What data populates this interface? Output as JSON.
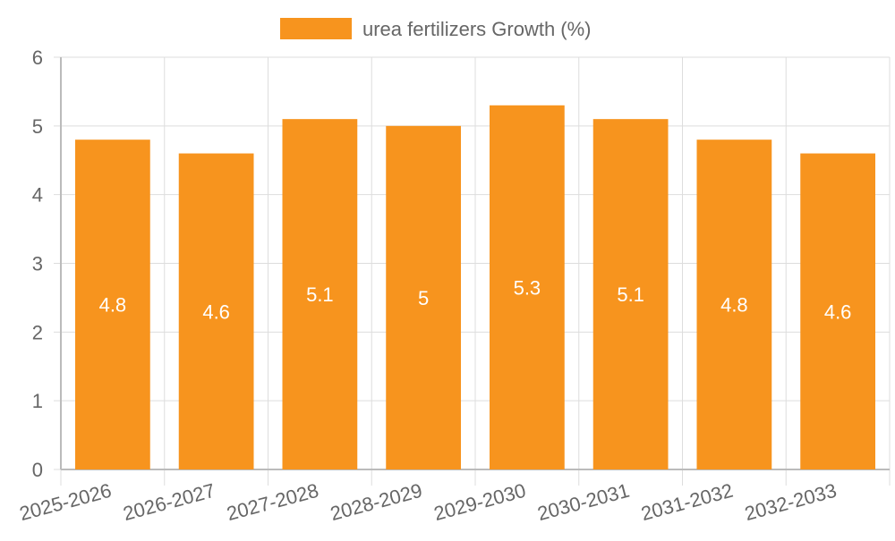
{
  "chart_data": {
    "type": "bar",
    "title": "",
    "xlabel": "",
    "ylabel": "",
    "categories": [
      "2025-2026",
      "2026-2027",
      "2027-2028",
      "2028-2029",
      "2029-2030",
      "2030-2031",
      "2031-2032",
      "2032-2033"
    ],
    "series": [
      {
        "name": "urea fertilizers Growth (%)",
        "values": [
          4.8,
          4.6,
          5.1,
          5,
          5.3,
          5.1,
          4.8,
          4.6
        ],
        "color": "#F7941E"
      }
    ],
    "ylim": [
      0,
      6
    ],
    "yticks": [
      0,
      1,
      2,
      3,
      4,
      5,
      6
    ],
    "grid": true,
    "legend_position": "top-center",
    "colors": {
      "bar": "#F7941E",
      "grid": "#DDDDDD",
      "axis": "#BBBBBB",
      "tick_text": "#666666",
      "data_label": "#FFFFFF",
      "legend_text": "#666666"
    }
  }
}
